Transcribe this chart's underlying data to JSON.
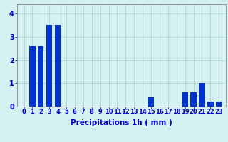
{
  "hours": [
    0,
    1,
    2,
    3,
    4,
    5,
    6,
    7,
    8,
    9,
    10,
    11,
    12,
    13,
    14,
    15,
    16,
    17,
    18,
    19,
    20,
    21,
    22,
    23
  ],
  "values": [
    0,
    2.6,
    2.6,
    3.5,
    3.5,
    0,
    0,
    0,
    0,
    0,
    0,
    0,
    0,
    0,
    0,
    0.4,
    0,
    0,
    0,
    0.6,
    0.6,
    1.0,
    0.2,
    0.2
  ],
  "bar_color": "#0033cc",
  "background_color": "#d4f0f0",
  "grid_color": "#aacece",
  "axis_color": "#888888",
  "tick_color": "#0000cc",
  "xlabel": "Précipitations 1h ( mm )",
  "ylim": [
    0,
    4.4
  ],
  "yticks": [
    0,
    1,
    2,
    3,
    4
  ],
  "xlabel_fontsize": 7.5,
  "tick_fontsize": 6
}
